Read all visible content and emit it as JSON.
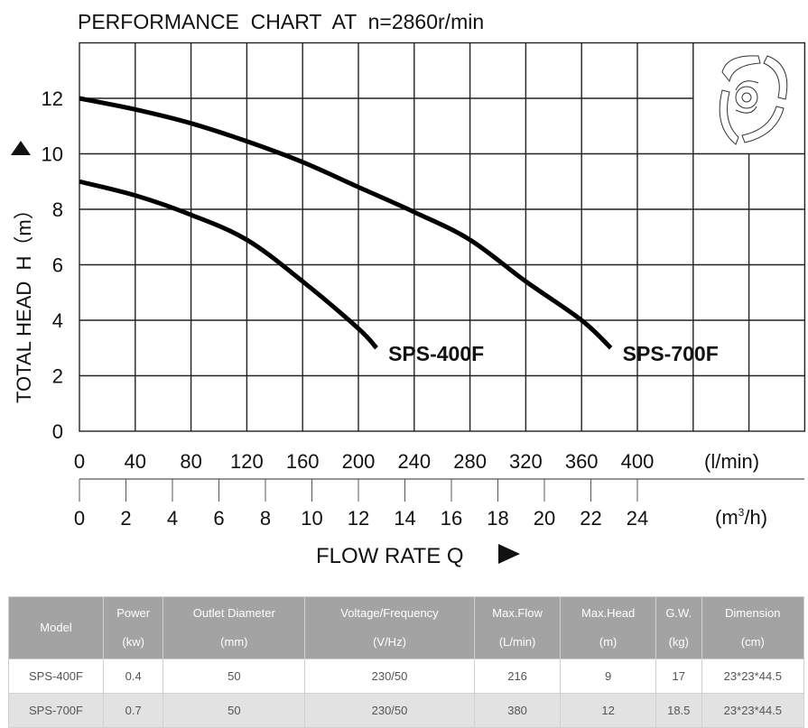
{
  "chart_data": {
    "type": "line",
    "title": "PERFORMANCE  CHART  AT  n=2860r/min",
    "ylabel": "TOTAL HEAD  H（m）",
    "xlabel": "FLOW RATE Q",
    "x_unit_top": "(l/min)",
    "x_unit_bottom_base": "(m",
    "x_unit_bottom_sup": "3",
    "x_unit_bottom_tail": "/h)",
    "xlim": [
      0,
      520
    ],
    "ylim": [
      0,
      14
    ],
    "grid": true,
    "x_ticks": [
      "0",
      "40",
      "80",
      "120",
      "160",
      "200",
      "240",
      "280",
      "320",
      "360",
      "400"
    ],
    "x_ticks_m3h": [
      "0",
      "2",
      "4",
      "6",
      "8",
      "10",
      "12",
      "14",
      "16",
      "18",
      "20",
      "22",
      "24"
    ],
    "y_ticks": [
      "0",
      "2",
      "4",
      "6",
      "8",
      "10",
      "12"
    ],
    "series": [
      {
        "name": "SPS-400F",
        "x": [
          0,
          40,
          80,
          120,
          160,
          200,
          213
        ],
        "y": [
          9.0,
          8.5,
          7.8,
          6.9,
          5.4,
          3.7,
          3.0
        ]
      },
      {
        "name": "SPS-700F",
        "x": [
          0,
          40,
          80,
          120,
          160,
          200,
          240,
          280,
          320,
          360,
          381
        ],
        "y": [
          12.0,
          11.6,
          11.1,
          10.45,
          9.7,
          8.8,
          7.9,
          6.9,
          5.4,
          4.0,
          3.0
        ]
      }
    ]
  },
  "table": {
    "headers": [
      {
        "l1": "Model",
        "l2": ""
      },
      {
        "l1": "Power",
        "l2": "(kw)"
      },
      {
        "l1": "Outlet Diameter",
        "l2": "(mm)"
      },
      {
        "l1": "Voltage/Frequency",
        "l2": "(V/Hz)"
      },
      {
        "l1": "Max.Flow",
        "l2": "(L/min)"
      },
      {
        "l1": "Max.Head",
        "l2": "(m)"
      },
      {
        "l1": "G.W.",
        "l2": "(kg)"
      },
      {
        "l1": "Dimension",
        "l2": "(cm)"
      }
    ],
    "rows": [
      [
        "SPS-400F",
        "0.4",
        "50",
        "230/50",
        "216",
        "9",
        "17",
        "23*23*44.5"
      ],
      [
        "SPS-700F",
        "0.7",
        "50",
        "230/50",
        "380",
        "12",
        "18.5",
        "23*23*44.5"
      ]
    ]
  }
}
